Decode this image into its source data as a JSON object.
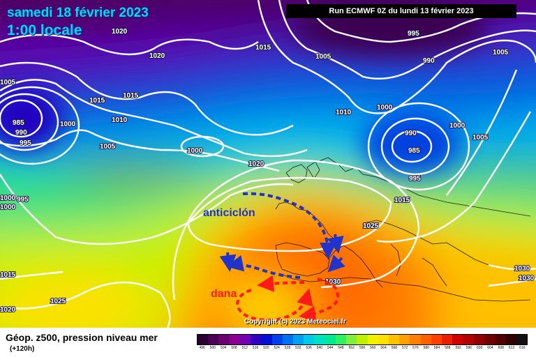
{
  "header": {
    "date": "samedi 18 février 2023",
    "time": "1:00 locale",
    "run": "Run ECMWF 0Z du lundi 13 février 2023"
  },
  "isobar_labels": [
    "1020",
    "1020",
    "1015",
    "1015",
    "1015",
    "1010",
    "1005",
    "1005",
    "1000",
    "1000",
    "995",
    "990",
    "985",
    "985",
    "990",
    "995",
    "1005",
    "1000",
    "1000",
    "1005",
    "1010",
    "1000",
    "990",
    "995",
    "1020",
    "1015",
    "1025",
    "1030",
    "1030",
    "1030",
    "1025",
    "1015",
    "1005",
    "1000",
    "1020",
    "995"
  ],
  "annotations": {
    "high_label": "anticiclón",
    "low_label": "dana",
    "high_color": "#2233cc",
    "low_color": "#ff1a1a"
  },
  "copyright": "Copyright (c) 2023 Meteociel.fr",
  "legend": {
    "title": "Géop. z500, pression niveau mer",
    "subtitle": "(+120h)",
    "ticks": [
      "496",
      "500",
      "504",
      "508",
      "512",
      "516",
      "520",
      "524",
      "528",
      "532",
      "536",
      "540",
      "544",
      "548",
      "552",
      "556",
      "560",
      "564",
      "568",
      "572",
      "576",
      "580",
      "584",
      "588",
      "592",
      "596",
      "600",
      "604",
      "608",
      "612",
      "616"
    ],
    "colors": [
      "#2a0030",
      "#4a0050",
      "#6a0070",
      "#8a0090",
      "#7000b0",
      "#3000c0",
      "#0010d0",
      "#0040e8",
      "#0070f0",
      "#00a0f0",
      "#00c8e8",
      "#00e0c0",
      "#00e890",
      "#30f060",
      "#80f040",
      "#c0f000",
      "#f0f000",
      "#ffe000",
      "#ffc000",
      "#ffa000",
      "#ff8000",
      "#ff6000",
      "#ff4000",
      "#e82000",
      "#d00000",
      "#b00000",
      "#900000",
      "#700000",
      "#500000",
      "#300000",
      "#101010"
    ]
  }
}
